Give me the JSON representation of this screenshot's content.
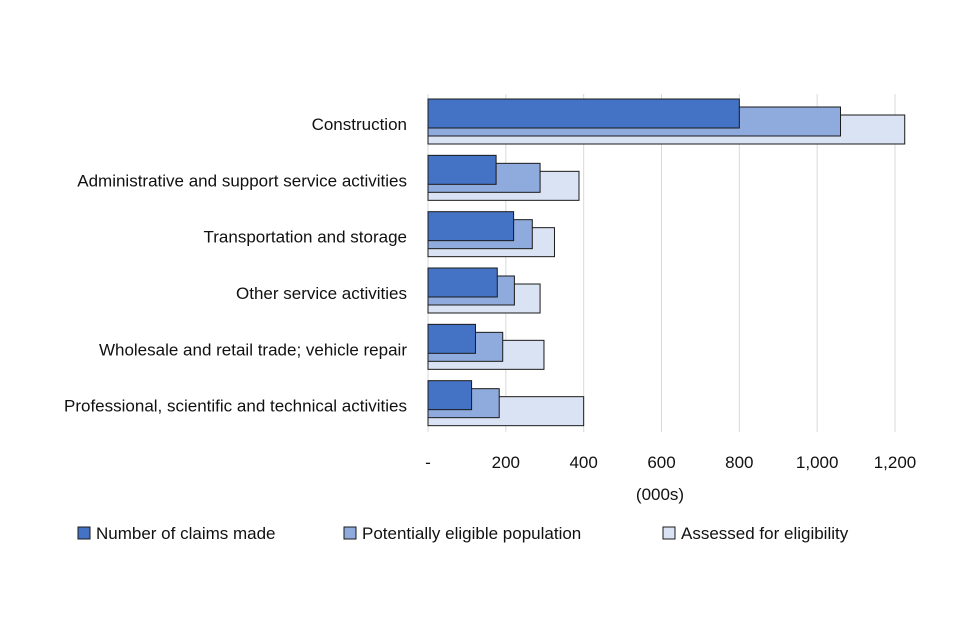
{
  "chart_data": {
    "type": "bar",
    "orientation": "horizontal",
    "categories": [
      "Construction",
      "Administrative and support service activities",
      "Transportation and storage",
      "Other service activities",
      "Wholesale and retail trade; vehicle repair",
      "Professional, scientific and technical activities"
    ],
    "series": [
      {
        "name": "Number of claims made",
        "color": "#4472c4",
        "values": [
          800,
          175,
          220,
          178,
          122,
          112
        ]
      },
      {
        "name": "Potentially eligible population",
        "color": "#8faadc",
        "values": [
          1060,
          288,
          268,
          222,
          192,
          183
        ]
      },
      {
        "name": "Assessed for eligibility",
        "color": "#dae3f3",
        "values": [
          1225,
          388,
          325,
          288,
          298,
          400
        ]
      }
    ],
    "xlim": [
      0,
      1200
    ],
    "ticks": [
      0,
      200,
      400,
      600,
      800,
      1000,
      1200
    ],
    "tick_labels": [
      "-",
      "200",
      "400",
      "600",
      "800",
      "1,000",
      "1,200"
    ],
    "xlabel": "(000s)",
    "ylabel": "",
    "title": "",
    "grid": true,
    "legend_position": "bottom"
  }
}
